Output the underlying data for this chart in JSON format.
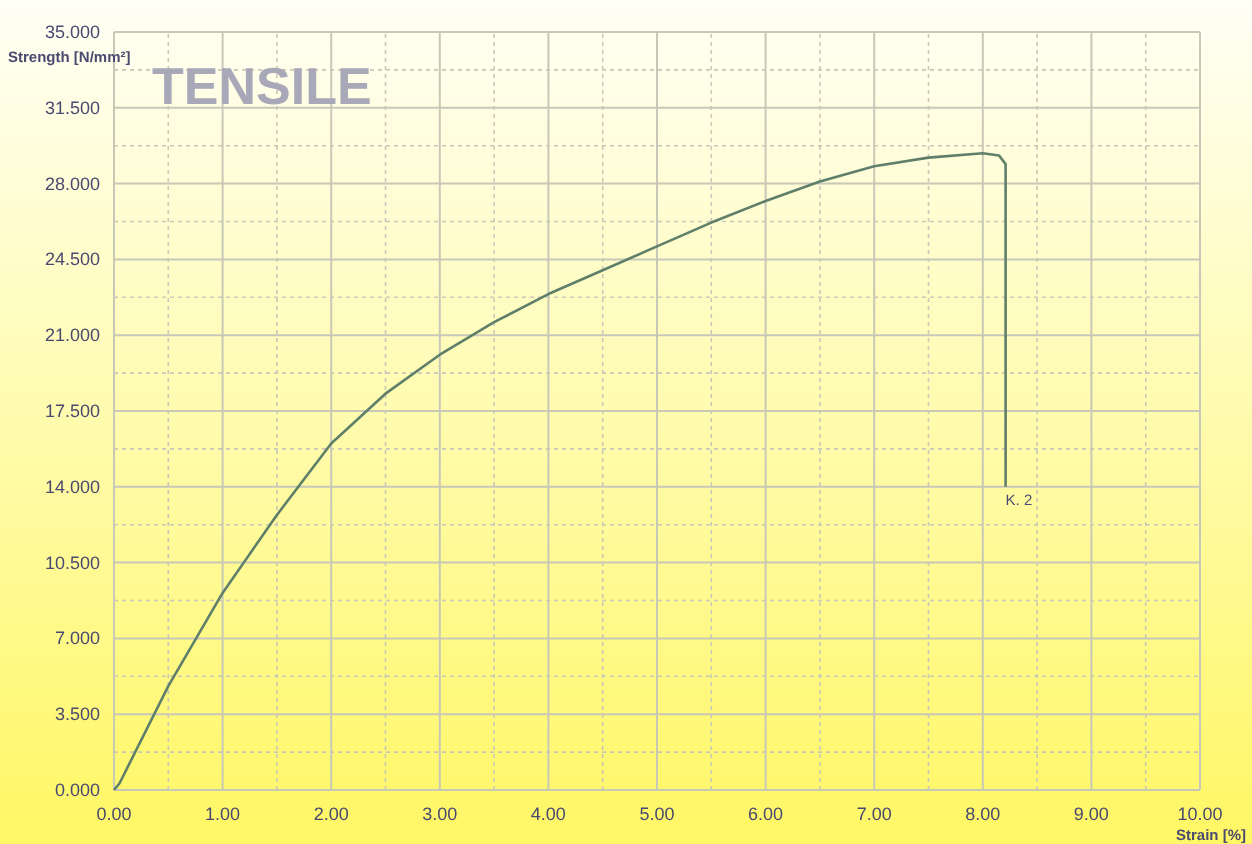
{
  "chart_data": {
    "type": "line",
    "title": "TENSILE",
    "xlabel": "Strain [%]",
    "ylabel": "Strength [N/mm²]",
    "x": [
      0,
      0.05,
      0.5,
      1,
      1.5,
      2,
      2.5,
      3,
      3.5,
      4,
      4.5,
      5,
      5.5,
      6,
      6.5,
      7,
      7.5,
      8,
      8.15,
      8.21,
      8.21
    ],
    "series": [
      {
        "color": "#5f7f6a",
        "values": [
          0,
          0.3,
          4.8,
          9.1,
          12.7,
          16,
          18.3,
          20.1,
          21.6,
          22.9,
          24,
          25.1,
          26.2,
          27.2,
          28.1,
          28.8,
          29.2,
          29.4,
          29.3,
          28.9,
          14
        ]
      }
    ],
    "xlim": [
      0,
      10
    ],
    "ylim": [
      0,
      35
    ],
    "xticks": [
      {
        "value": 0,
        "label": "0.00"
      },
      {
        "value": 0.5,
        "label": null
      },
      {
        "value": 1,
        "label": "1.00"
      },
      {
        "value": 1.5,
        "label": null
      },
      {
        "value": 2,
        "label": "2.00"
      },
      {
        "value": 2.5,
        "label": null
      },
      {
        "value": 3,
        "label": "3.00"
      },
      {
        "value": 3.5,
        "label": null
      },
      {
        "value": 4,
        "label": "4.00"
      },
      {
        "value": 4.5,
        "label": null
      },
      {
        "value": 5,
        "label": "5.00"
      },
      {
        "value": 5.5,
        "label": null
      },
      {
        "value": 6,
        "label": "6.00"
      },
      {
        "value": 6.5,
        "label": null
      },
      {
        "value": 7,
        "label": "7.00"
      },
      {
        "value": 7.5,
        "label": null
      },
      {
        "value": 8,
        "label": "8.00"
      },
      {
        "value": 8.5,
        "label": null
      },
      {
        "value": 9,
        "label": "9.00"
      },
      {
        "value": 9.5,
        "label": null
      },
      {
        "value": 10,
        "label": "10.00"
      }
    ],
    "yticks": [
      {
        "value": 0,
        "label": "0.000"
      },
      {
        "value": 1.75,
        "label": null
      },
      {
        "value": 3.5,
        "label": "3.500"
      },
      {
        "value": 5.25,
        "label": null
      },
      {
        "value": 7,
        "label": "7.000"
      },
      {
        "value": 8.75,
        "label": null
      },
      {
        "value": 10.5,
        "label": "10.500"
      },
      {
        "value": 12.25,
        "label": null
      },
      {
        "value": 14,
        "label": "14.000"
      },
      {
        "value": 15.75,
        "label": null
      },
      {
        "value": 17.5,
        "label": "17.500"
      },
      {
        "value": 19.25,
        "label": null
      },
      {
        "value": 21,
        "label": "21.000"
      },
      {
        "value": 22.75,
        "label": null
      },
      {
        "value": 24.5,
        "label": "24.500"
      },
      {
        "value": 26.25,
        "label": null
      },
      {
        "value": 28,
        "label": "28.000"
      },
      {
        "value": 29.75,
        "label": null
      },
      {
        "value": 31.5,
        "label": "31.500"
      },
      {
        "value": 33.25,
        "label": null
      },
      {
        "value": 35,
        "label": "35.000"
      }
    ],
    "grid": true,
    "marker": "none",
    "line_style": "solid",
    "annotations": [
      {
        "text": "K. 2",
        "x": 8.21,
        "y": 14
      }
    ]
  }
}
